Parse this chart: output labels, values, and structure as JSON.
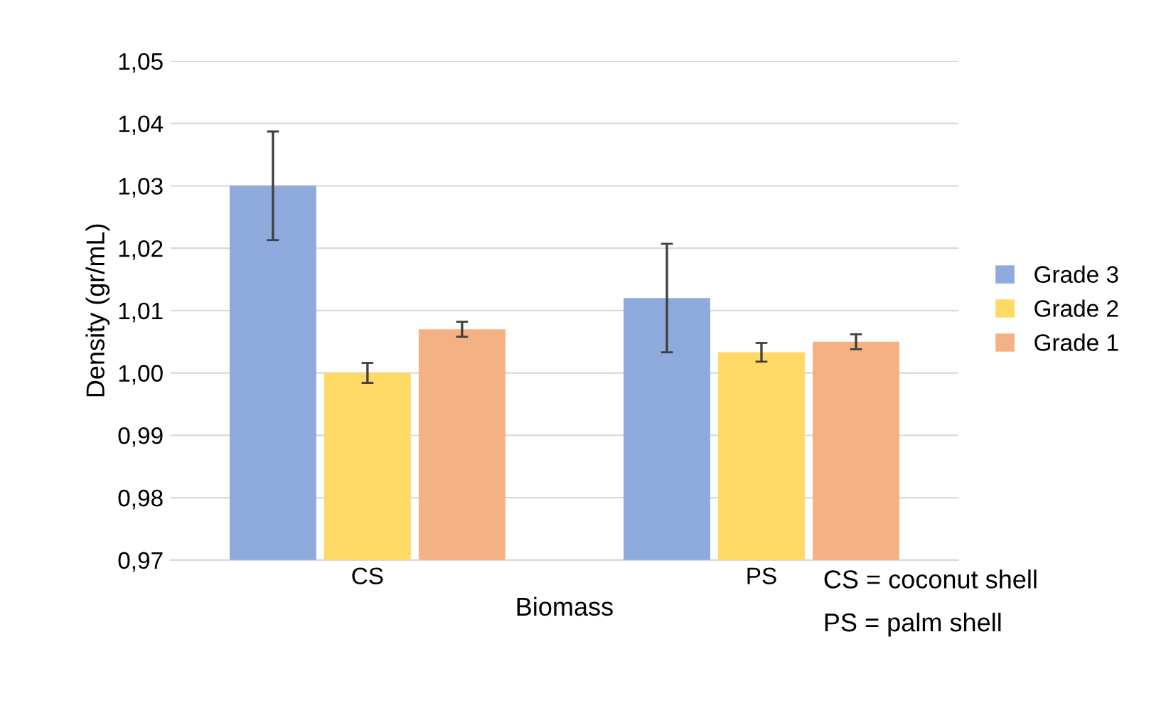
{
  "chart_data": {
    "type": "bar",
    "xlabel": "Biomass",
    "ylabel": "Density (gr/mL)",
    "categories": [
      "CS",
      "PS"
    ],
    "series": [
      {
        "name": "Grade 3",
        "color": "#8faadc",
        "values": [
          1.03,
          1.012
        ],
        "errors": [
          0.0087,
          0.0087
        ]
      },
      {
        "name": "Grade 2",
        "color": "#ffd966",
        "values": [
          1.0,
          1.0033
        ],
        "errors": [
          0.0016,
          0.0015
        ]
      },
      {
        "name": "Grade 1",
        "color": "#f4b183",
        "values": [
          1.007,
          1.005
        ],
        "errors": [
          0.0012,
          0.0012
        ]
      }
    ],
    "ylim": [
      0.97,
      1.05
    ],
    "yticks": [
      {
        "value": 0.97,
        "label": "0,97"
      },
      {
        "value": 0.98,
        "label": "0,98"
      },
      {
        "value": 0.99,
        "label": "0,99"
      },
      {
        "value": 1.0,
        "label": "1,00"
      },
      {
        "value": 1.01,
        "label": "1,01"
      },
      {
        "value": 1.02,
        "label": "1,02"
      },
      {
        "value": 1.03,
        "label": "1,03"
      },
      {
        "value": 1.04,
        "label": "1,04"
      },
      {
        "value": 1.05,
        "label": "1,05"
      }
    ],
    "grid": "y",
    "legend": "right",
    "annotations": [
      "CS = coconut shell",
      "PS = palm shell"
    ]
  }
}
